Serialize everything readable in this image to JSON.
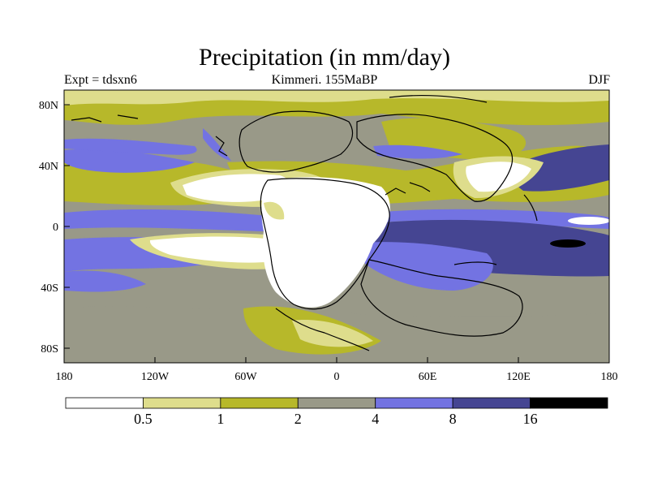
{
  "title": "Precipitation (in mm/day)",
  "experiment_label": "Expt = tdsxn6",
  "subtitle": "Kimmeri. 155MaBP",
  "season": "DJF",
  "map": {
    "lon_ticks": [
      "180",
      "120W",
      "60W",
      "0",
      "60E",
      "120E",
      "180"
    ],
    "lat_ticks": [
      "80N",
      "40N",
      "0",
      "40S",
      "80S"
    ]
  },
  "colorbar": {
    "colors": [
      "#ffffff",
      "#dedd8c",
      "#b7b82a",
      "#999988",
      "#7373e2",
      "#454592",
      "#000000"
    ],
    "levels": [
      "0.5",
      "1",
      "2",
      "4",
      "8",
      "16"
    ]
  }
}
